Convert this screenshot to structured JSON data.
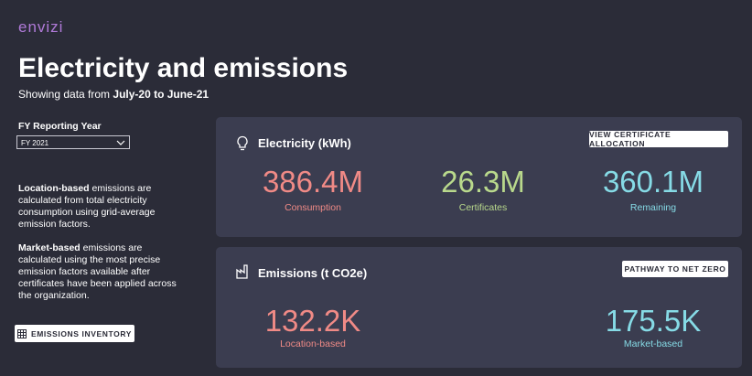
{
  "header": {
    "brand": "envizi",
    "title": "Electricity and emissions",
    "subtitle_prefix": "Showing data from",
    "subtitle_period": "July-20 to June-21"
  },
  "sidebar": {
    "filter_label": "FY Reporting Year",
    "filter_value": "FY 2021",
    "notes": [
      {
        "bold": "Location-based",
        "text": "emissions are calculated from total electricity consumption using grid-average emission factors."
      },
      {
        "bold": "Market-based",
        "text": "emissions are calculated using the most precise emission factors available after certificates have been applied across the organization."
      }
    ],
    "button": "EMISSIONS INVENTORY"
  },
  "electricity": {
    "title": "Electricity (kWh)",
    "button": "VIEW CERTIFICATE ALLOCATION",
    "metrics": [
      {
        "value": "386.4M",
        "label": "Consumption",
        "color": "#f08a86"
      },
      {
        "value": "26.3M",
        "label": "Certificates",
        "color": "#b9d98c"
      },
      {
        "value": "360.1M",
        "label": "Remaining",
        "color": "#86dbe6"
      }
    ]
  },
  "emissions": {
    "title": "Emissions (t CO2e)",
    "button": "PATHWAY TO NET ZERO",
    "metrics": [
      {
        "value": "132.2K",
        "label": "Location-based",
        "color": "#f08a86"
      },
      {
        "value": "175.5K",
        "label": "Market-based",
        "color": "#86dbe6"
      }
    ]
  }
}
